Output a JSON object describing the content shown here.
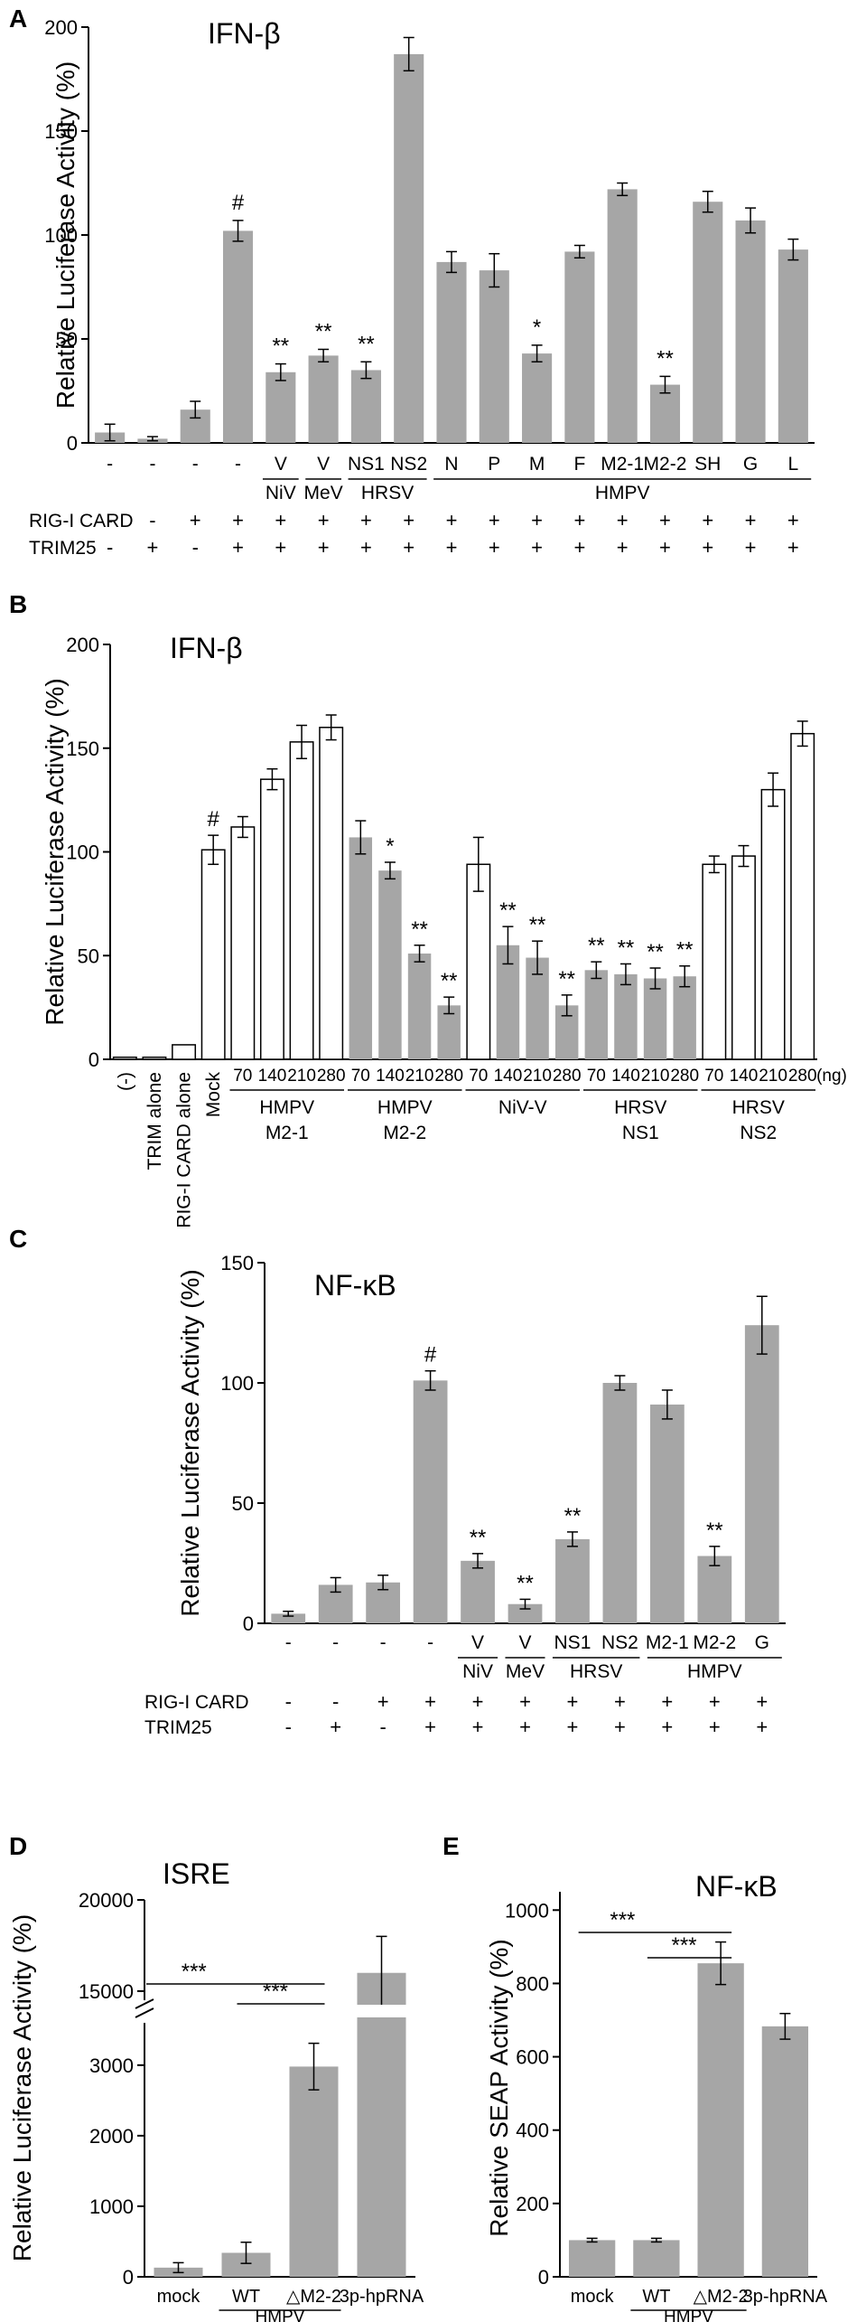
{
  "figure": {
    "panel_letters": [
      "A",
      "B",
      "C",
      "D",
      "E"
    ]
  },
  "chart_data": [
    {
      "panel": "A",
      "type": "bar",
      "title": "IFN-β",
      "ylabel": "Relative Luciferase Activity (%)",
      "ylim": [
        0,
        200
      ],
      "yticks": [
        0,
        50,
        100,
        150,
        200
      ],
      "colors": {
        "bar": "#a6a6a6"
      },
      "categories": [
        "-",
        "-",
        "-",
        "-",
        "V",
        "V",
        "NS1",
        "NS2",
        "N",
        "P",
        "M",
        "F",
        "M2-1",
        "M2-2",
        "SH",
        "G",
        "L"
      ],
      "values": [
        5,
        2,
        16,
        102,
        34,
        42,
        35,
        187,
        87,
        83,
        43,
        92,
        122,
        28,
        116,
        107,
        93
      ],
      "errors": [
        4,
        1,
        4,
        5,
        4,
        3,
        4,
        8,
        5,
        8,
        4,
        3,
        3,
        4,
        5,
        6,
        5
      ],
      "annotations": [
        "",
        "",
        "",
        "#",
        "**",
        "**",
        "**",
        "",
        "",
        "",
        "*",
        "",
        "",
        "**",
        "",
        "",
        ""
      ],
      "virus_groups": [
        {
          "label": "NiV",
          "start": 4,
          "end": 4
        },
        {
          "label": "MeV",
          "start": 5,
          "end": 5
        },
        {
          "label": "HRSV",
          "start": 6,
          "end": 7
        },
        {
          "label": "HMPV",
          "start": 8,
          "end": 16
        }
      ],
      "conditions": [
        {
          "label": "RIG-I CARD",
          "values": [
            "-",
            "-",
            "+",
            "+",
            "+",
            "+",
            "+",
            "+",
            "+",
            "+",
            "+",
            "+",
            "+",
            "+",
            "+",
            "+",
            "+"
          ]
        },
        {
          "label": "TRIM25",
          "values": [
            "-",
            "+",
            "-",
            "+",
            "+",
            "+",
            "+",
            "+",
            "+",
            "+",
            "+",
            "+",
            "+",
            "+",
            "+",
            "+",
            "+"
          ]
        }
      ]
    },
    {
      "panel": "B",
      "type": "bar",
      "title": "IFN-β",
      "ylabel": "Relative Luciferase Activity (%)",
      "ylim": [
        0,
        200
      ],
      "yticks": [
        0,
        50,
        100,
        150,
        200
      ],
      "unit_label": "(ng)",
      "colors": {
        "filled": "#a6a6a6",
        "open": "#ffffff"
      },
      "categories": [
        "(-)",
        "TRIM alone",
        "RIG-I CARD alone",
        "Mock",
        "70",
        "140",
        "210",
        "280",
        "70",
        "140",
        "210",
        "280",
        "70",
        "140",
        "210",
        "280",
        "70",
        "140",
        "210",
        "280",
        "70",
        "140",
        "210",
        "280"
      ],
      "values": [
        1,
        1,
        7,
        101,
        112,
        135,
        153,
        160,
        107,
        91,
        51,
        26,
        94,
        55,
        49,
        26,
        43,
        41,
        39,
        40,
        94,
        98,
        130,
        157
      ],
      "errors": [
        0,
        0,
        0,
        7,
        5,
        5,
        8,
        6,
        8,
        4,
        4,
        4,
        13,
        9,
        8,
        5,
        4,
        5,
        5,
        5,
        4,
        5,
        8,
        6
      ],
      "filled": [
        false,
        false,
        false,
        false,
        false,
        false,
        false,
        false,
        true,
        true,
        true,
        true,
        false,
        true,
        true,
        true,
        true,
        true,
        true,
        true,
        false,
        false,
        false,
        false
      ],
      "annotations": [
        "",
        "",
        "",
        "#",
        "",
        "",
        "",
        "",
        "",
        "*",
        "**",
        "**",
        "",
        "**",
        "**",
        "**",
        "**",
        "**",
        "**",
        "**",
        "",
        "",
        "",
        ""
      ],
      "groups": [
        {
          "line1": "HMPV",
          "line2": "M2-1",
          "start": 4,
          "end": 7
        },
        {
          "line1": "HMPV",
          "line2": "M2-2",
          "start": 8,
          "end": 11
        },
        {
          "line1": "NiV-V",
          "line2": "",
          "start": 12,
          "end": 15
        },
        {
          "line1": "HRSV",
          "line2": "NS1",
          "start": 16,
          "end": 19
        },
        {
          "line1": "HRSV",
          "line2": "NS2",
          "start": 20,
          "end": 23
        }
      ]
    },
    {
      "panel": "C",
      "type": "bar",
      "title": "NF-κB",
      "ylabel": "Relative Luciferase Activity (%)",
      "ylim": [
        0,
        150
      ],
      "yticks": [
        0,
        50,
        100,
        150
      ],
      "colors": {
        "bar": "#a6a6a6"
      },
      "categories": [
        "-",
        "-",
        "-",
        "-",
        "V",
        "V",
        "NS1",
        "NS2",
        "M2-1",
        "M2-2",
        "G"
      ],
      "values": [
        4,
        16,
        17,
        101,
        26,
        8,
        35,
        100,
        91,
        28,
        124
      ],
      "errors": [
        1,
        3,
        3,
        4,
        3,
        2,
        3,
        3,
        6,
        4,
        12
      ],
      "annotations": [
        "",
        "",
        "",
        "#",
        "**",
        "**",
        "**",
        "",
        "",
        "**",
        ""
      ],
      "virus_groups": [
        {
          "label": "NiV",
          "start": 4,
          "end": 4
        },
        {
          "label": "MeV",
          "start": 5,
          "end": 5
        },
        {
          "label": "HRSV",
          "start": 6,
          "end": 7
        },
        {
          "label": "HMPV",
          "start": 8,
          "end": 10
        }
      ],
      "conditions": [
        {
          "label": "RIG-I CARD",
          "values": [
            "-",
            "-",
            "+",
            "+",
            "+",
            "+",
            "+",
            "+",
            "+",
            "+",
            "+"
          ]
        },
        {
          "label": "TRIM25",
          "values": [
            "-",
            "+",
            "-",
            "+",
            "+",
            "+",
            "+",
            "+",
            "+",
            "+",
            "+"
          ]
        }
      ]
    },
    {
      "panel": "D",
      "type": "bar",
      "title": "ISRE",
      "ylabel": "Relative Luciferase Activity (%)",
      "ylim": [
        0,
        20000
      ],
      "yticks_lower": [
        0,
        1000,
        2000,
        3000
      ],
      "yticks_upper": [
        15000,
        20000
      ],
      "axis_break": [
        3600,
        14500
      ],
      "colors": {
        "bar": "#a6a6a6"
      },
      "categories": [
        "mock",
        "WT",
        "△M2-2",
        "3p-hpRNA"
      ],
      "values": [
        130,
        340,
        2980,
        16000
      ],
      "errors": [
        70,
        150,
        330,
        2000
      ],
      "group": {
        "label": "HMPV",
        "start": 1,
        "end": 2
      },
      "significance": [
        {
          "from": 0,
          "to": 2,
          "label": "***"
        },
        {
          "from": 1,
          "to": 2,
          "label": "***"
        }
      ]
    },
    {
      "panel": "E",
      "type": "bar",
      "title": "NF-κB",
      "ylabel": "Relative SEAP Activity (%)",
      "ylim": [
        0,
        1050
      ],
      "yticks": [
        0,
        200,
        400,
        600,
        800,
        1000
      ],
      "colors": {
        "bar": "#a6a6a6"
      },
      "categories": [
        "mock",
        "WT",
        "△M2-2",
        "3p-hpRNA"
      ],
      "values": [
        100,
        100,
        855,
        683
      ],
      "errors": [
        5,
        5,
        58,
        35
      ],
      "group": {
        "label": "HMPV",
        "start": 1,
        "end": 2
      },
      "significance": [
        {
          "from": 0,
          "to": 2,
          "label": "***"
        },
        {
          "from": 1,
          "to": 2,
          "label": "***"
        }
      ]
    }
  ]
}
